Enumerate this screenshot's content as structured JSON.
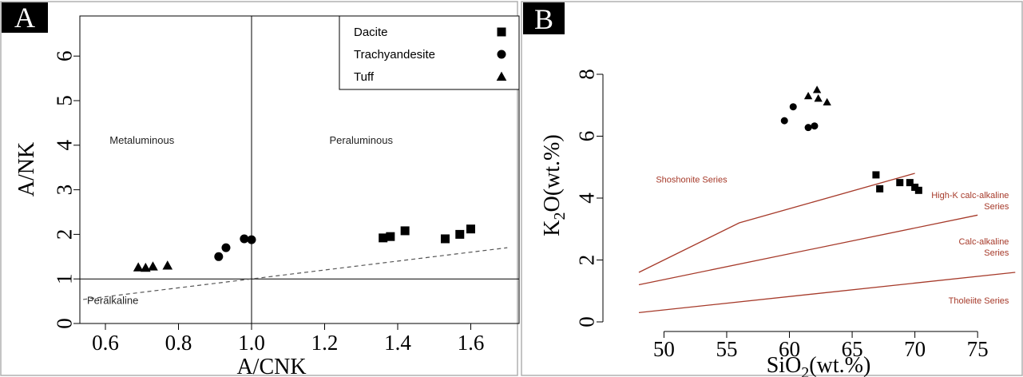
{
  "colors": {
    "series_line": "#a63a2a",
    "marker": "#000000",
    "axis": "#000000",
    "frame": "#b0b0b0"
  },
  "chart_data": [
    {
      "panel_label": "A",
      "type": "scatter",
      "xlabel": "A/CNK",
      "ylabel": "A/NK",
      "xlim": [
        0.5,
        1.7
      ],
      "ylim": [
        0,
        7
      ],
      "xticks": [
        0.6,
        0.8,
        1.0,
        1.2,
        1.4,
        1.6
      ],
      "xtick_labels": [
        "0.6",
        "0.8",
        "1.0",
        "1.2",
        "1.4",
        "1.6"
      ],
      "yticks": [
        0,
        1,
        2,
        3,
        4,
        5,
        6
      ],
      "ytick_labels": [
        "0",
        "1",
        "2",
        "3",
        "4",
        "5",
        "6"
      ],
      "legend": {
        "placement": "top-right",
        "entries": [
          {
            "label": "Dacite",
            "marker": "square"
          },
          {
            "label": "Trachyandesite",
            "marker": "circle"
          },
          {
            "label": "Tuff",
            "marker": "triangle"
          }
        ]
      },
      "series": [
        {
          "name": "Dacite",
          "marker": "square",
          "x": [
            1.36,
            1.38,
            1.42,
            1.53,
            1.57,
            1.6
          ],
          "y": [
            1.92,
            1.95,
            2.08,
            1.9,
            2.0,
            2.12
          ]
        },
        {
          "name": "Trachyandesite",
          "marker": "circle",
          "x": [
            0.91,
            0.93,
            0.98,
            1.0
          ],
          "y": [
            1.5,
            1.7,
            1.9,
            1.88
          ]
        },
        {
          "name": "Tuff",
          "marker": "triangle",
          "x": [
            0.69,
            0.71,
            0.73,
            0.77
          ],
          "y": [
            1.26,
            1.25,
            1.28,
            1.3
          ]
        }
      ],
      "reference_lines": [
        {
          "kind": "vertical",
          "x": 1.0
        },
        {
          "kind": "horizontal",
          "y": 1.0
        },
        {
          "kind": "dashed",
          "points": [
            [
              0.5,
              0.5
            ],
            [
              1.7,
              1.7
            ]
          ]
        }
      ],
      "region_labels": [
        {
          "text": "Metaluminous",
          "x": 0.7,
          "y": 4.0
        },
        {
          "text": "Peraluminous",
          "x": 1.3,
          "y": 4.0
        },
        {
          "text": "Peralkaline",
          "x": 0.62,
          "y": 0.4
        }
      ]
    },
    {
      "panel_label": "B",
      "type": "scatter",
      "xlabel": "SiO2(wt.%)",
      "ylabel": "K2O(wt.%)",
      "xlim": [
        46,
        78
      ],
      "ylim": [
        -0.5,
        10.2
      ],
      "xticks": [
        50,
        55,
        60,
        65,
        70,
        75
      ],
      "xtick_labels": [
        "50",
        "55",
        "60",
        "65",
        "70",
        "75"
      ],
      "yticks": [
        0,
        2,
        4,
        6,
        8
      ],
      "ytick_labels": [
        "0",
        "2",
        "4",
        "6",
        "8"
      ],
      "series": [
        {
          "name": "Dacite",
          "marker": "square",
          "x": [
            66.9,
            67.2,
            68.8,
            69.6,
            70.0,
            70.3
          ],
          "y": [
            4.75,
            4.3,
            4.5,
            4.5,
            4.35,
            4.25
          ]
        },
        {
          "name": "Trachyandesite",
          "marker": "circle",
          "x": [
            59.6,
            60.3,
            61.5,
            62.0
          ],
          "y": [
            6.5,
            6.95,
            6.28,
            6.33
          ]
        },
        {
          "name": "Tuff",
          "marker": "triangle",
          "x": [
            61.5,
            62.2,
            62.3,
            63.0
          ],
          "y": [
            7.3,
            7.5,
            7.22,
            7.1
          ]
        }
      ],
      "boundary_lines": [
        {
          "points": [
            [
              48,
              1.6
            ],
            [
              56,
              3.2
            ],
            [
              70,
              4.8
            ]
          ]
        },
        {
          "points": [
            [
              48,
              1.2
            ],
            [
              75,
              3.45
            ]
          ]
        },
        {
          "points": [
            [
              48,
              0.3
            ],
            [
              78,
              1.6
            ]
          ]
        }
      ],
      "region_labels": [
        {
          "lines": [
            "Shoshonite Series"
          ],
          "x": 52.2,
          "y": 4.5,
          "align": "middle"
        },
        {
          "lines": [
            "High-K calc-alkaline",
            "Series"
          ],
          "x": 77.5,
          "y": 4.0,
          "align": "end"
        },
        {
          "lines": [
            "Calc-alkaline",
            "Series"
          ],
          "x": 77.5,
          "y": 2.5,
          "align": "end"
        },
        {
          "lines": [
            "Tholeiite Series"
          ],
          "x": 77.5,
          "y": 0.6,
          "align": "end"
        }
      ]
    }
  ]
}
